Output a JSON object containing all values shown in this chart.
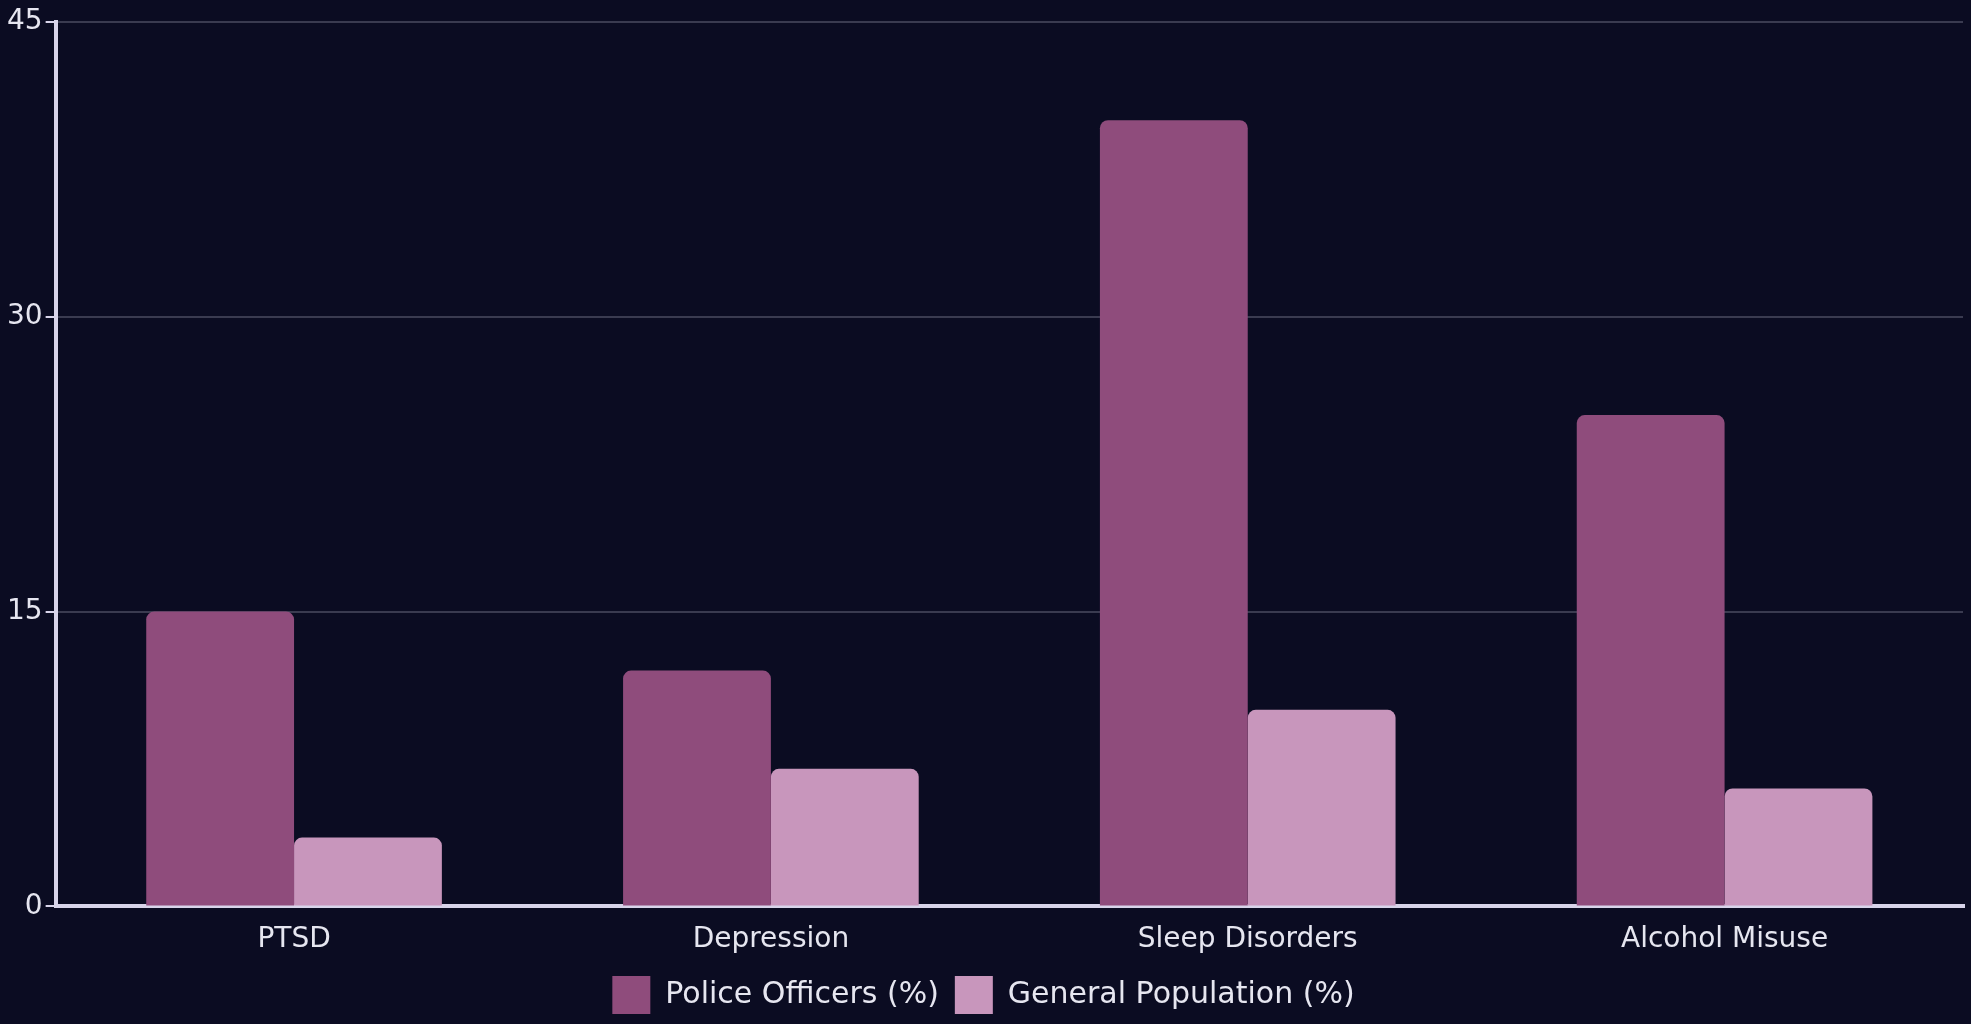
{
  "chart_data": {
    "type": "bar",
    "categories": [
      "PTSD",
      "Depression",
      "Sleep Disorders",
      "Alcohol Misuse"
    ],
    "series": [
      {
        "name": "Police Officers (%)",
        "color": "#8f4c7c",
        "values": [
          15,
          12,
          40,
          25
        ]
      },
      {
        "name": "General Population (%)",
        "color": "#c896bc",
        "values": [
          3.5,
          7,
          10,
          6
        ]
      }
    ],
    "ylim": [
      0,
      45
    ],
    "yticks": [
      0,
      15,
      30,
      45
    ],
    "grid": "y",
    "legend": "bottom"
  }
}
